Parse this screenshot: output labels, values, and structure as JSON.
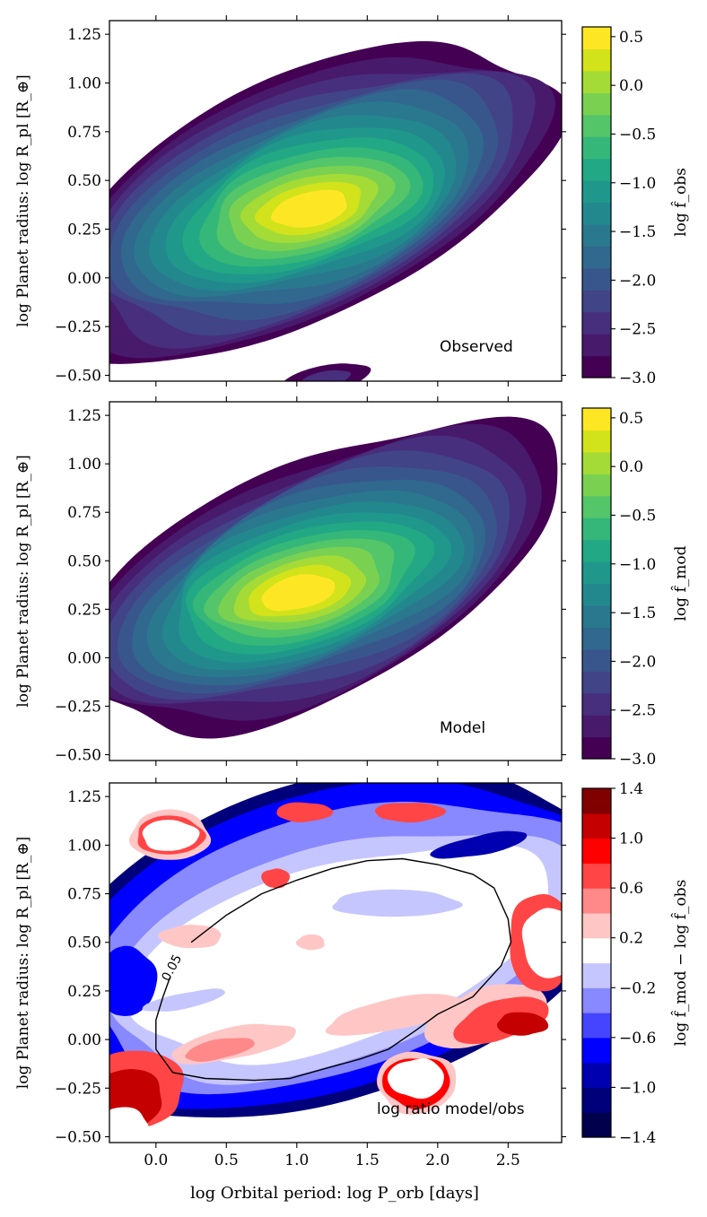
{
  "figure": {
    "xlabel": "log Orbital period: log P_orb [days]",
    "shared_ylabel": "log Planet radius: log R_pl [R_⊕]"
  },
  "chart_data": [
    {
      "type": "heatmap",
      "id": "observed",
      "title": "",
      "annotation": "Observed",
      "ylabel": "log Planet radius: log R_pl [R_⊕]",
      "xlabel": "",
      "xlim": [
        -0.33,
        2.88
      ],
      "ylim": [
        -0.53,
        1.32
      ],
      "xticks": [
        0.0,
        0.5,
        1.0,
        1.5,
        2.0,
        2.5
      ],
      "yticks": [
        -0.5,
        -0.25,
        0.0,
        0.25,
        0.5,
        0.75,
        1.0,
        1.25
      ],
      "ytick_labels": [
        "−0.50",
        "−0.25",
        "0.00",
        "0.25",
        "0.50",
        "0.75",
        "1.00",
        "1.25"
      ],
      "colorbar": {
        "label": "log f̂_obs",
        "range": [
          -3.0,
          0.6
        ],
        "ticks": [
          0.5,
          0.0,
          -0.5,
          -1.0,
          -1.5,
          -2.0,
          -2.5,
          -3.0
        ],
        "tick_labels": [
          "0.5",
          "0.0",
          "−0.5",
          "−1.0",
          "−1.5",
          "−2.0",
          "−2.5",
          "−3.0"
        ],
        "colormap": "viridis",
        "n_levels": 18
      },
      "density_peak": {
        "x": 1.1,
        "y": 0.35,
        "value": 0.45
      }
    },
    {
      "type": "heatmap",
      "id": "model",
      "title": "",
      "annotation": "Model",
      "ylabel": "log Planet radius: log R_pl [R_⊕]",
      "xlabel": "",
      "xlim": [
        -0.33,
        2.88
      ],
      "ylim": [
        -0.53,
        1.32
      ],
      "xticks": [
        0.0,
        0.5,
        1.0,
        1.5,
        2.0,
        2.5
      ],
      "yticks": [
        -0.5,
        -0.25,
        0.0,
        0.25,
        0.5,
        0.75,
        1.0,
        1.25
      ],
      "ytick_labels": [
        "−0.50",
        "−0.25",
        "0.00",
        "0.25",
        "0.50",
        "0.75",
        "1.00",
        "1.25"
      ],
      "colorbar": {
        "label": "log f̂_mod",
        "range": [
          -3.0,
          0.6
        ],
        "ticks": [
          0.5,
          0.0,
          -0.5,
          -1.0,
          -1.5,
          -2.0,
          -2.5,
          -3.0
        ],
        "tick_labels": [
          "0.5",
          "0.0",
          "−0.5",
          "−1.0",
          "−1.5",
          "−2.0",
          "−2.5",
          "−3.0"
        ],
        "colormap": "viridis",
        "n_levels": 18
      },
      "density_peak": {
        "x": 1.0,
        "y": 0.33,
        "value": 0.4
      }
    },
    {
      "type": "heatmap",
      "id": "ratio",
      "title": "",
      "annotation": "log ratio model/obs",
      "ylabel": "log Planet radius: log R_pl [R_⊕]",
      "xlabel": "log Orbital period: log P_orb [days]",
      "xlim": [
        -0.33,
        2.88
      ],
      "ylim": [
        -0.53,
        1.32
      ],
      "xticks": [
        0.0,
        0.5,
        1.0,
        1.5,
        2.0,
        2.5
      ],
      "xtick_labels": [
        "0.0",
        "0.5",
        "1.0",
        "1.5",
        "2.0",
        "2.5"
      ],
      "yticks": [
        -0.5,
        -0.25,
        0.0,
        0.25,
        0.5,
        0.75,
        1.0,
        1.25
      ],
      "ytick_labels": [
        "−0.50",
        "−0.25",
        "0.00",
        "0.25",
        "0.50",
        "0.75",
        "1.00",
        "1.25"
      ],
      "colorbar": {
        "label": "log f̂_mod − log f̂_obs",
        "range": [
          -1.4,
          1.4
        ],
        "ticks": [
          1.4,
          1.0,
          0.6,
          0.2,
          -0.2,
          -0.6,
          -1.0,
          -1.4
        ],
        "tick_labels": [
          "1.4",
          "1.0",
          "0.6",
          "0.2",
          "−0.2",
          "−0.6",
          "−1.0",
          "−1.4"
        ],
        "colormap": "seismic",
        "n_levels": 14
      },
      "contour_label": "0.05",
      "contour_line": {
        "level": 0.05,
        "points": [
          [
            0.25,
            0.5
          ],
          [
            0.5,
            0.64
          ],
          [
            0.75,
            0.75
          ],
          [
            1.0,
            0.82
          ],
          [
            1.25,
            0.88
          ],
          [
            1.5,
            0.92
          ],
          [
            1.75,
            0.93
          ],
          [
            2.0,
            0.9
          ],
          [
            2.25,
            0.85
          ],
          [
            2.4,
            0.78
          ],
          [
            2.5,
            0.62
          ],
          [
            2.52,
            0.5
          ],
          [
            2.45,
            0.38
          ],
          [
            2.25,
            0.22
          ],
          [
            2.0,
            0.13
          ],
          [
            1.85,
            0.05
          ],
          [
            1.65,
            -0.05
          ],
          [
            1.45,
            -0.1
          ],
          [
            1.2,
            -0.15
          ],
          [
            0.95,
            -0.2
          ],
          [
            0.7,
            -0.21
          ],
          [
            0.35,
            -0.2
          ],
          [
            0.12,
            -0.17
          ],
          [
            0.0,
            -0.05
          ],
          [
            0.0,
            0.1
          ],
          [
            0.05,
            0.22
          ],
          [
            0.1,
            0.32
          ]
        ]
      }
    }
  ]
}
